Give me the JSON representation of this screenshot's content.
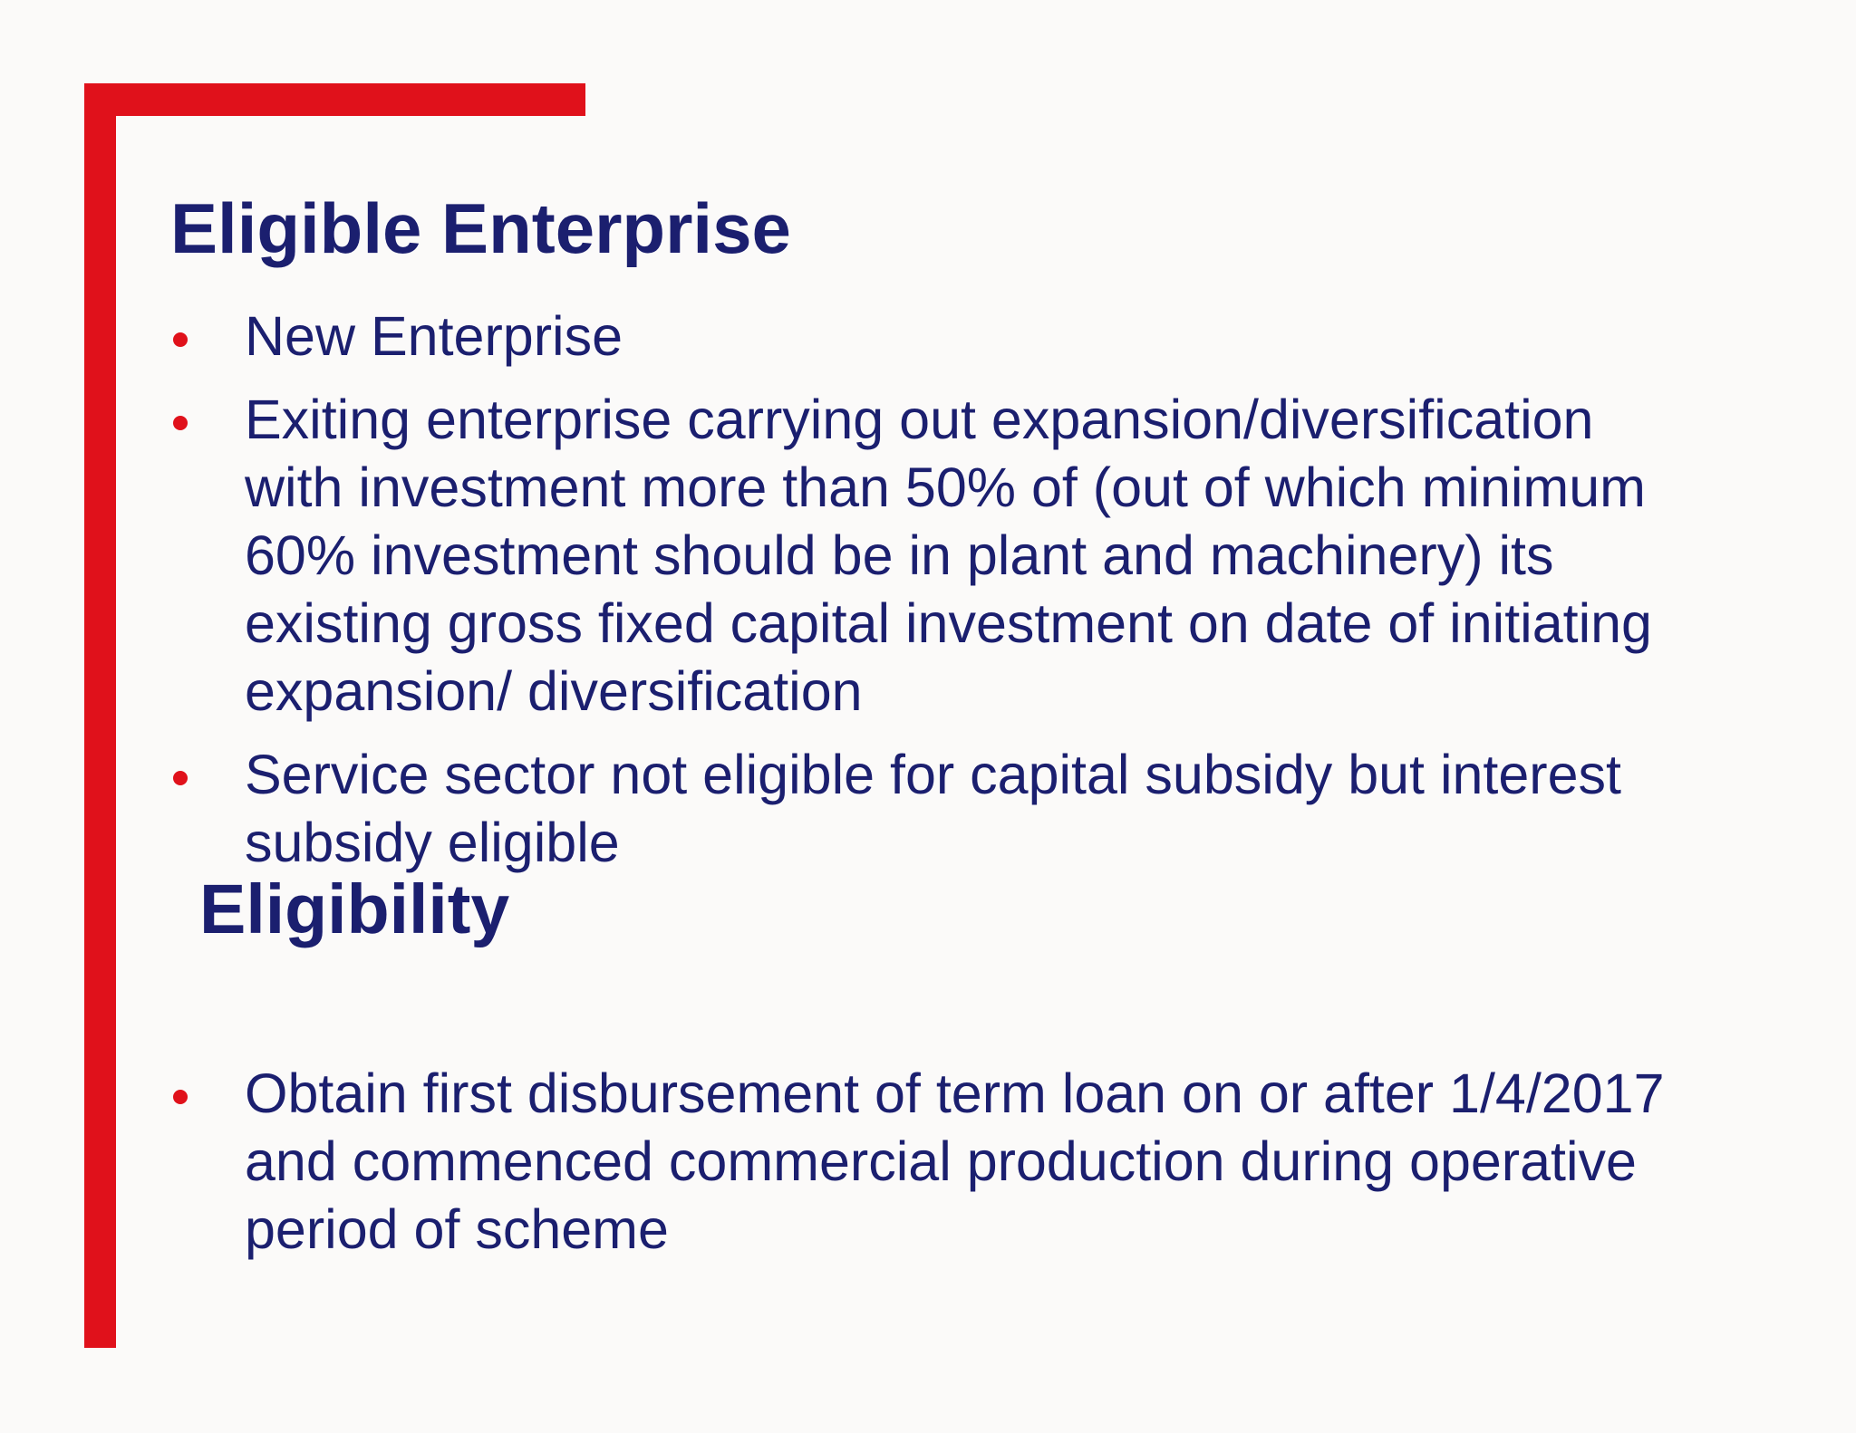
{
  "slide": {
    "colors": {
      "accent_red": "#e0111b",
      "text_navy": "#1b1f6f",
      "background": "#fbfaf9"
    },
    "title": "Eligible Enterprise",
    "subheading": "Eligibility",
    "bullets_main": [
      {
        "lines": [
          "New Enterprise"
        ]
      },
      {
        "lines": [
          "Exiting enterprise carrying out expansion/diversification",
          "with investment more than 50% of (out of which minimum",
          "60% investment should be in plant and machinery) its",
          "existing gross fixed capital investment on date of initiating",
          "expansion/ diversification"
        ]
      },
      {
        "lines": [
          "Service sector not eligible for capital subsidy but interest",
          "subsidy eligible"
        ]
      }
    ],
    "bullets_secondary": [
      {
        "lines": [
          "Obtain first disbursement of term loan on or after 1/4/2017",
          "and commenced commercial production during operative",
          "period of scheme"
        ]
      }
    ]
  }
}
